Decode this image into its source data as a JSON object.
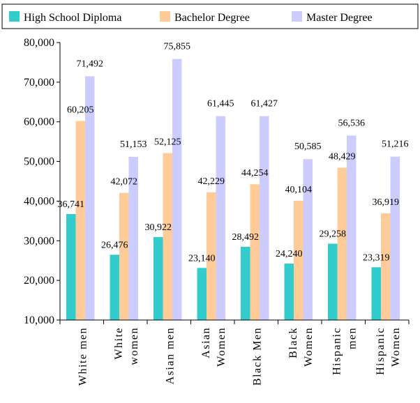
{
  "chart_data": {
    "type": "bar",
    "categories": [
      [
        "White men"
      ],
      [
        "White",
        "women"
      ],
      [
        "Asian men"
      ],
      [
        "Asian",
        "Women"
      ],
      [
        "Black Men"
      ],
      [
        "Black",
        "Women"
      ],
      [
        "Hispanic",
        "men"
      ],
      [
        "Hispanic",
        "Women"
      ]
    ],
    "series": [
      {
        "name": "High School Diploma",
        "color": "#33CCCC",
        "values": [
          36741,
          26476,
          30922,
          23140,
          28492,
          24240,
          29258,
          23319
        ],
        "labels": [
          "36,741",
          "26,476",
          "30,922",
          "23,140",
          "28,492",
          "24,240",
          "29,258",
          "23,319"
        ]
      },
      {
        "name": "Bachelor Degree",
        "color": "#FFCC99",
        "values": [
          60205,
          42072,
          52125,
          42229,
          44254,
          40104,
          48429,
          36919
        ],
        "labels": [
          "60,205",
          "42,072",
          "52,125",
          "42,229",
          "44,254",
          "40,104",
          "48,429",
          "36,919"
        ]
      },
      {
        "name": "Master Degree",
        "color": "#CCCCFF",
        "values": [
          71492,
          51153,
          75855,
          61445,
          61427,
          50585,
          56536,
          51216
        ],
        "labels": [
          "71,492",
          "51,153",
          "75,855",
          "61,445",
          "61,427",
          "50,585",
          "56,536",
          "51,216"
        ]
      }
    ],
    "yticks": [
      "10,000",
      "20,000",
      "30,000",
      "40,000",
      "50,000",
      "60,000",
      "70,000",
      "80,000"
    ],
    "ylim": [
      10000,
      80000
    ],
    "legend_position": "top",
    "grid": false
  }
}
